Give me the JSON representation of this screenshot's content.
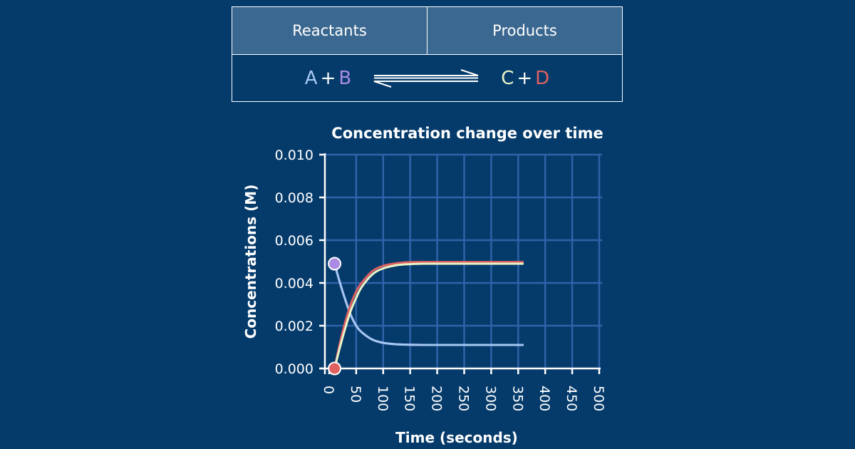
{
  "table": {
    "reactants_label": "Reactants",
    "products_label": "Products",
    "equation": {
      "species": [
        "A",
        "B",
        "C",
        "D"
      ],
      "plus": "+",
      "colors": {
        "A": "#a7c7f2",
        "B": "#a98be3",
        "C": "#e8f5c8",
        "D": "#e06060"
      }
    }
  },
  "chart_data": {
    "type": "line",
    "title": "Concentration change over time",
    "xlabel": "Time (seconds)",
    "ylabel": "Concentrations (M)",
    "xlim": [
      0,
      500
    ],
    "ylim": [
      0,
      0.01
    ],
    "xticks": [
      0,
      50,
      100,
      150,
      200,
      250,
      300,
      350,
      400,
      450,
      500
    ],
    "yticks": [
      "0.000",
      "0.002",
      "0.004",
      "0.006",
      "0.008",
      "0.010"
    ],
    "grid": true,
    "colors": {
      "grid": "#2f62a8",
      "reactant": "#a98be3",
      "product": "#e06060"
    },
    "series": [
      {
        "x": [
          10,
          20,
          30,
          40,
          50,
          60,
          80,
          100,
          125,
          150,
          175,
          200,
          250,
          300,
          360
        ],
        "y": [
          0.0049,
          0.004,
          0.0032,
          0.0025,
          0.002,
          0.0017,
          0.00135,
          0.0012,
          0.00113,
          0.00111,
          0.0011,
          0.0011,
          0.0011,
          0.0011,
          0.0011
        ],
        "color": "#a98be3",
        "start_marker": true
      },
      {
        "x": [
          10,
          20,
          30,
          40,
          50,
          60,
          80,
          100,
          125,
          150,
          175,
          200,
          250,
          300,
          360
        ],
        "y": [
          0.0049,
          0.004,
          0.0032,
          0.0025,
          0.002,
          0.0017,
          0.00135,
          0.0012,
          0.00113,
          0.00111,
          0.0011,
          0.0011,
          0.0011,
          0.0011,
          0.0011
        ],
        "color": "#a7c7f2"
      },
      {
        "x": [
          10,
          20,
          30,
          40,
          50,
          60,
          80,
          100,
          125,
          150,
          175,
          200,
          250,
          300,
          360
        ],
        "y": [
          0.0,
          0.0012,
          0.0022,
          0.003,
          0.0036,
          0.004,
          0.00455,
          0.0048,
          0.00492,
          0.00497,
          0.00498,
          0.00498,
          0.00498,
          0.00498,
          0.00498
        ],
        "color": "#e06060",
        "start_marker": true
      },
      {
        "x": [
          10,
          20,
          30,
          40,
          50,
          60,
          80,
          100,
          125,
          150,
          175,
          200,
          250,
          300,
          360
        ],
        "y": [
          0.0,
          0.001,
          0.0019,
          0.0027,
          0.0033,
          0.0038,
          0.0044,
          0.00468,
          0.00483,
          0.00488,
          0.0049,
          0.0049,
          0.0049,
          0.0049,
          0.0049
        ],
        "color": "#e8f5c8"
      }
    ]
  }
}
